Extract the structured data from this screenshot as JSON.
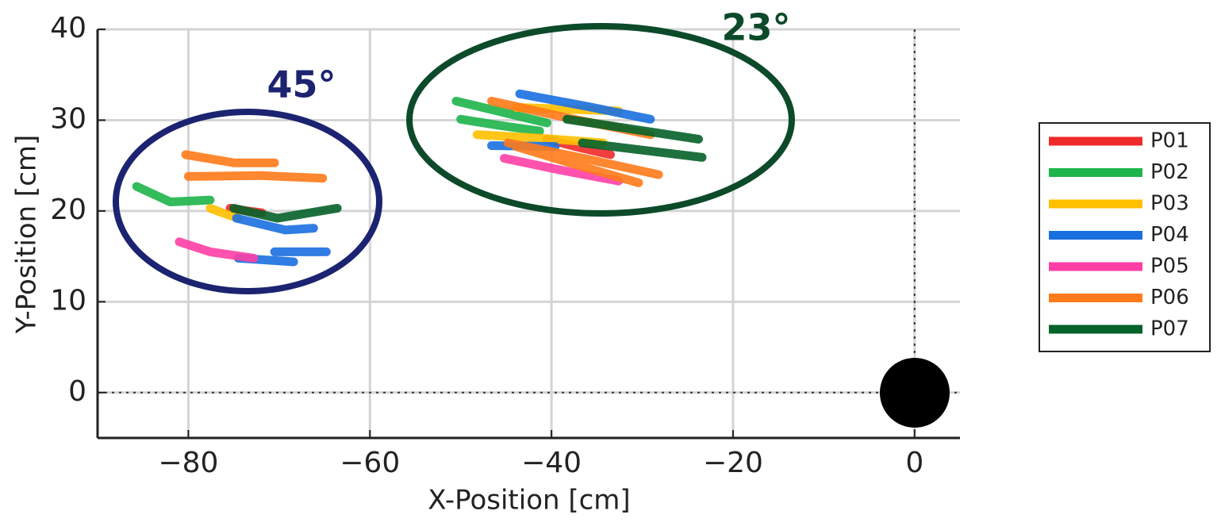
{
  "chart_data": {
    "type": "line",
    "xlabel": "X-Position [cm]",
    "ylabel": "Y-Position [cm]",
    "xlim": [
      -90,
      5
    ],
    "ylim": [
      -5,
      40
    ],
    "xticks": [
      {
        "value": -80,
        "label": "−80"
      },
      {
        "value": -60,
        "label": "−60"
      },
      {
        "value": -40,
        "label": "−40"
      },
      {
        "value": -20,
        "label": "−20"
      },
      0
    ],
    "yticks": [
      0,
      10,
      20,
      30,
      40
    ],
    "grid": true,
    "legend": "right",
    "annotations": [
      "45°",
      "23°"
    ],
    "series": [
      {
        "name": "P01",
        "color": "#f02a2a",
        "x": [
          -75.4,
          -73.5,
          -71.9,
          null,
          -40.5,
          -37,
          -33.5
        ],
        "values": [
          20.3,
          20.0,
          19.8,
          null,
          27.9,
          27.0,
          26.2
        ]
      },
      {
        "name": "P02",
        "color": "#1db44a",
        "x": [
          -85.7,
          -82,
          -77.6,
          null,
          -50.5,
          -45.5,
          -40.5,
          null,
          -50,
          -45.6,
          -41.3
        ],
        "values": [
          22.7,
          21.0,
          21.2,
          null,
          32.1,
          30.9,
          29.7,
          null,
          30.1,
          29.4,
          28.8
        ]
      },
      {
        "name": "P03",
        "color": "#ffc000",
        "x": [
          -77.6,
          -76,
          -74.5,
          null,
          -48.2,
          -41,
          -34.3,
          null,
          -43.9,
          -38,
          -32.6
        ],
        "values": [
          20.3,
          19.7,
          19.2,
          null,
          28.4,
          28.0,
          27.5,
          null,
          31.4,
          31.2,
          31.0
        ]
      },
      {
        "name": "P04",
        "color": "#1a6fe0",
        "x": [
          -74.7,
          -69.3,
          -66.2,
          null,
          -70.5,
          -64.8,
          null,
          -74.5,
          -68.4,
          null,
          -43.5,
          -36,
          -29.1,
          null,
          -46.6,
          -39.6
        ],
        "values": [
          19.2,
          17.9,
          18.1,
          null,
          15.5,
          15.5,
          null,
          14.8,
          14.4,
          null,
          32.9,
          31.5,
          30.1,
          null,
          27.2,
          27.1
        ]
      },
      {
        "name": "P05",
        "color": "#ff3fa5",
        "x": [
          -81,
          -77.6,
          -72.8,
          null,
          -45.2,
          -39,
          -32.6
        ],
        "values": [
          16.6,
          15.5,
          14.8,
          null,
          25.8,
          24.5,
          23.3
        ]
      },
      {
        "name": "P06",
        "color": "#ff7a1a",
        "x": [
          -80.3,
          -75,
          -70.5,
          null,
          -80,
          -72,
          -65.2,
          null,
          -46.6,
          -38,
          -29.1,
          null,
          -43.9,
          -37,
          -30.4,
          null,
          -44.8,
          -36,
          -28.2
        ],
        "values": [
          26.2,
          25.3,
          25.3,
          null,
          23.8,
          23.9,
          23.6,
          null,
          32.1,
          30.2,
          28.4,
          null,
          27.1,
          25.0,
          23.1,
          null,
          27.5,
          25.7,
          24.0
        ]
      },
      {
        "name": "P07",
        "color": "#056229",
        "x": [
          -75,
          -70.2,
          -63.6,
          null,
          -38.3,
          -31,
          -23.8,
          null,
          -36.6,
          -30,
          -23.4
        ],
        "values": [
          20.3,
          19.2,
          20.3,
          null,
          30.1,
          29.0,
          27.9,
          null,
          27.5,
          26.7,
          25.9
        ]
      }
    ]
  }
}
